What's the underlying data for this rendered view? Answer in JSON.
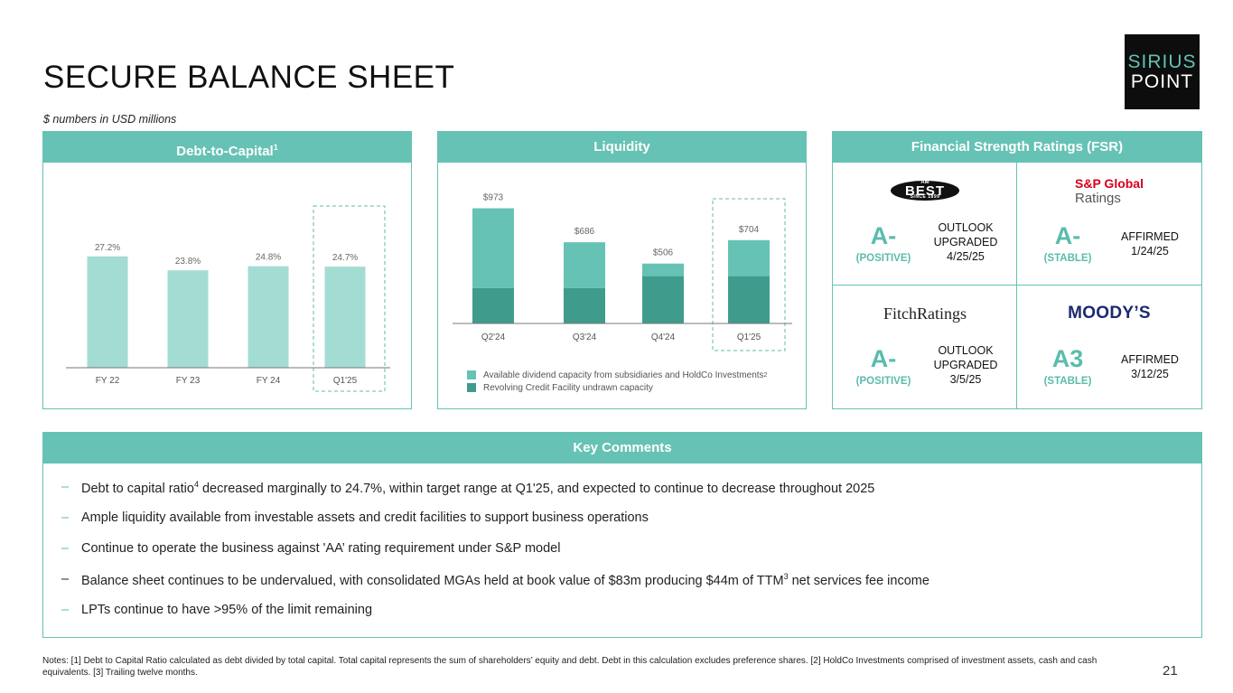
{
  "page": {
    "title": "SECURE BALANCE SHEET",
    "subtitle": "$ numbers in USD millions",
    "page_number": "21",
    "notes": "Notes: [1] Debt to Capital Ratio calculated as debt divided by total capital. Total capital represents the sum of shareholders’ equity and debt. Debt in this calculation excludes preference shares. [2] HoldCo Investments comprised of investment assets, cash and cash equivalents. [3] Trailing twelve months."
  },
  "logo": {
    "line1": "SIRIUS",
    "line2": "POINT"
  },
  "debt_panel": {
    "title": "Debt-to-Capital",
    "title_sup": "1"
  },
  "liquidity_panel": {
    "title": "Liquidity",
    "legend": [
      {
        "label": "Available dividend capacity from subsidiaries and HoldCo Investments",
        "sup": "2",
        "color": "#66c2b4"
      },
      {
        "label": "Revolving Credit Facility undrawn capacity",
        "sup": "",
        "color": "#3f9c8c"
      }
    ]
  },
  "chart_data": [
    {
      "type": "bar",
      "categories": [
        "FY 22",
        "FY 23",
        "FY 24",
        "Q1'25"
      ],
      "values": [
        27.2,
        23.8,
        24.8,
        24.7
      ],
      "data_labels": [
        "27.2%",
        "23.8%",
        "24.8%",
        "24.7%"
      ],
      "highlight_category": "Q1'25",
      "ylim": [
        0,
        32
      ],
      "color": "#a3dcd3"
    },
    {
      "type": "bar",
      "stacked": true,
      "categories": [
        "Q2'24",
        "Q3'24",
        "Q4'24",
        "Q1'25"
      ],
      "totals": [
        973,
        686,
        506,
        704
      ],
      "data_labels": [
        "$973",
        "$686",
        "$506",
        "$704"
      ],
      "series": [
        {
          "name": "Revolving Credit Facility undrawn capacity",
          "values": [
            300,
            300,
            400,
            400
          ],
          "color": "#3f9c8c"
        },
        {
          "name": "Available dividend capacity from subsidiaries and HoldCo Investments",
          "values": [
            673,
            386,
            106,
            304
          ],
          "color": "#66c2b4"
        }
      ],
      "highlight_category": "Q1'25",
      "ylim": [
        0,
        1100
      ]
    }
  ],
  "fsr_panel": {
    "title": "Financial Strength Ratings (FSR)",
    "agencies": [
      {
        "logo_text": "BEST",
        "logo_small_top": "AM",
        "logo_small_bottom": "SINCE 1899",
        "grade": "A-",
        "outlook": "(POSITIVE)",
        "status_lines": [
          "OUTLOOK",
          "UPGRADED",
          "4/25/25"
        ]
      },
      {
        "logo_text": "S&P Global",
        "logo_sub": "Ratings",
        "grade": "A-",
        "outlook": "(STABLE)",
        "status_lines": [
          "AFFIRMED",
          "1/24/25"
        ]
      },
      {
        "logo_text": "FitchRatings",
        "grade": "A-",
        "outlook": "(POSITIVE)",
        "status_lines": [
          "OUTLOOK",
          "UPGRADED",
          "3/5/25"
        ]
      },
      {
        "logo_text": "MOODY’S",
        "grade": "A3",
        "outlook": "(STABLE)",
        "status_lines": [
          "AFFIRMED",
          "3/12/25"
        ]
      }
    ]
  },
  "key_comments": {
    "title": "Key Comments",
    "items": [
      {
        "before": "Debt to capital ratio",
        "sup": "4",
        "after": " decreased marginally to 24.7%, within target range at Q1'25, and expected to continue to decrease throughout 2025"
      },
      {
        "before": "Ample liquidity available from investable assets and credit facilities to support business operations",
        "sup": "",
        "after": ""
      },
      {
        "before": "Continue to operate the business against 'AA’ rating requirement under S&P model",
        "sup": "",
        "after": ""
      },
      {
        "before": "Balance sheet continues to be undervalued, with consolidated MGAs held at book value of $83m producing $44m of TTM",
        "sup": "3",
        "after": " net services fee income"
      },
      {
        "before": "LPTs continue to have >95% of the limit remaining",
        "sup": "",
        "after": ""
      }
    ]
  }
}
